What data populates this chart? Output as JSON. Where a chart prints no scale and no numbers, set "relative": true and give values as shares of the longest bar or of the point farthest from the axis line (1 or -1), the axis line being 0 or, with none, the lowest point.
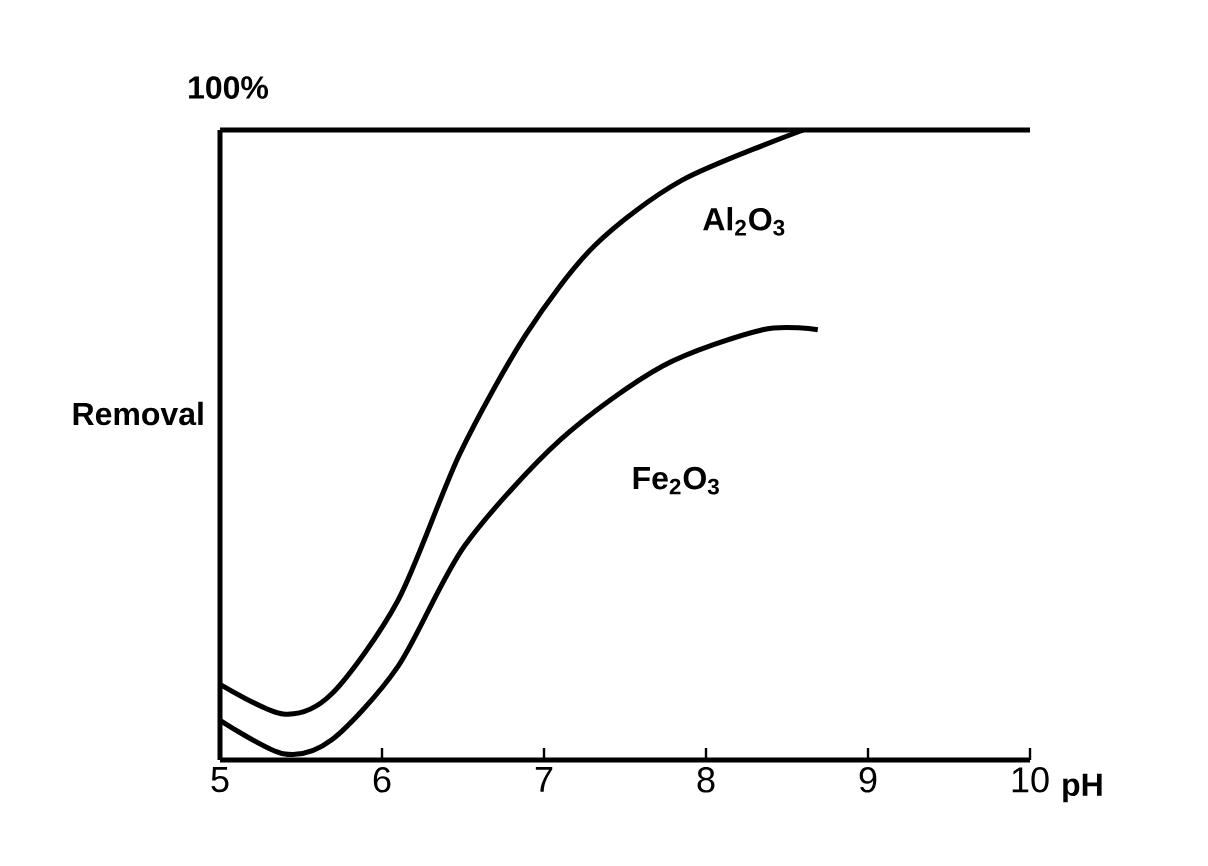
{
  "chart_data": {
    "type": "line",
    "relative": true,
    "xlabel": "pH",
    "ylabel": "Removal",
    "xlim": [
      5,
      10
    ],
    "xticks": [
      5,
      6,
      7,
      8,
      9,
      10
    ],
    "ref_lines": [
      {
        "axis": "y",
        "value": 1,
        "label": "100%"
      }
    ],
    "series": [
      {
        "name": "Al$_{2}$O$_{3}$",
        "color": "#000000",
        "x": [
          5.0,
          5.39,
          5.69,
          6.1,
          6.48,
          6.89,
          7.31,
          7.85,
          8.6
        ],
        "values": [
          0.12,
          0.073,
          0.105,
          0.254,
          0.486,
          0.676,
          0.816,
          0.92,
          1
        ]
      },
      {
        "name": "Fe$_{2}$O$_{3}$",
        "color": "#000000",
        "x": [
          5.0,
          5.39,
          5.69,
          6.1,
          6.51,
          7.1,
          7.73,
          8.35,
          8.69
        ],
        "values": [
          0.063,
          0.01,
          0.032,
          0.149,
          0.34,
          0.508,
          0.625,
          0.683,
          0.683
        ]
      }
    ]
  }
}
